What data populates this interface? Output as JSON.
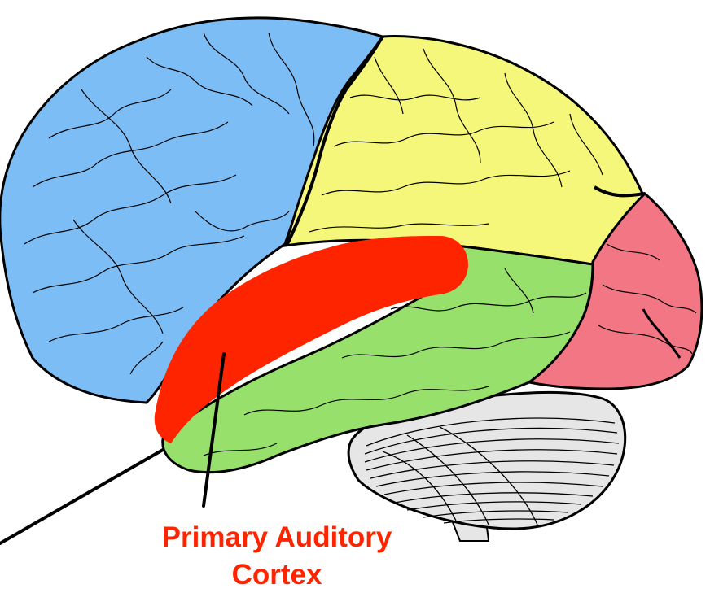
{
  "diagram": {
    "label": {
      "line1": "Primary Auditory",
      "line2": "Cortex"
    },
    "colors": {
      "frontal_lobe": "#7cbdf6",
      "parietal_lobe": "#f5f77a",
      "temporal_lobe": "#97e06c",
      "occipital_lobe": "#f27684",
      "primary_auditory_cortex": "#ff2400",
      "cerebellum": "#e6e6e6",
      "brainstem": "#e6e6e6",
      "outline": "#000000",
      "label_text": "#ff2400"
    }
  }
}
